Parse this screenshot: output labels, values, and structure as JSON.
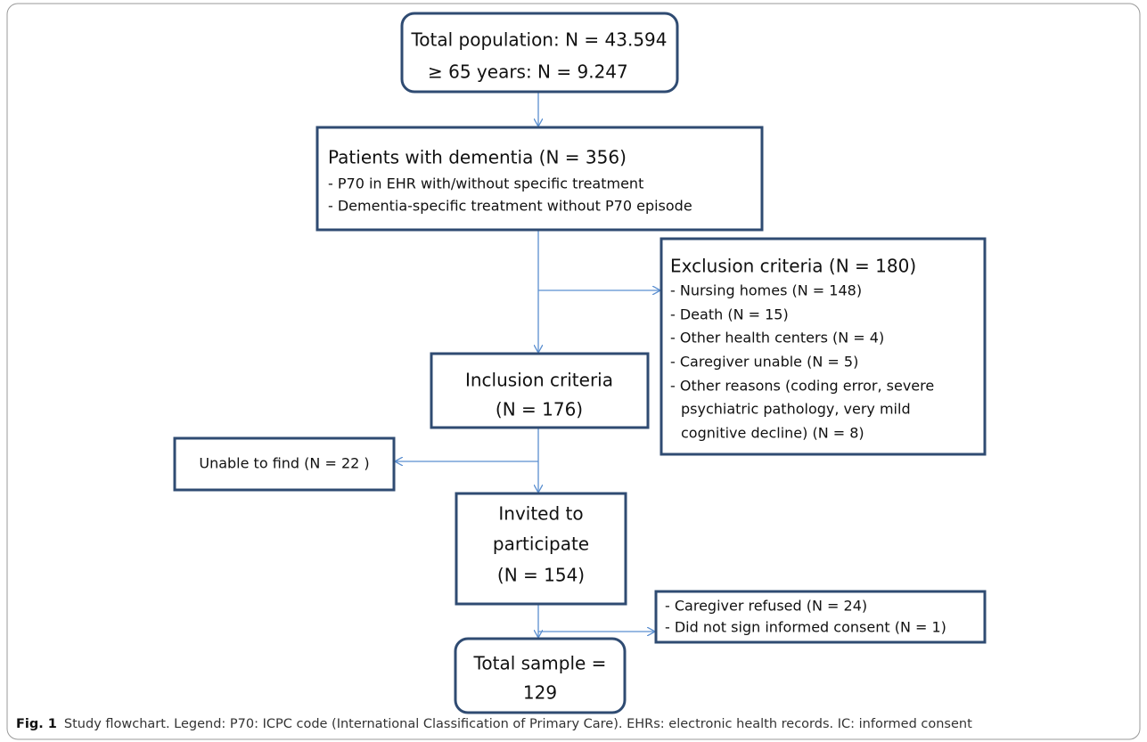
{
  "nodes": [
    {
      "lines": [
        "Total population: N = 43.594",
        "≥ 65 years: N = 9.247"
      ]
    },
    {
      "lines": [
        "Patients with dementia (N = 356)",
        "- P70 in EHR with/without specific treatment",
        "- Dementia-specific treatment without P70 episode"
      ]
    },
    {
      "lines": [
        "Exclusion criteria (N = 180)",
        "- Nursing homes (N = 148)",
        "- Death (N = 15)",
        "- Other health centers (N = 4)",
        "- Caregiver unable (N = 5)",
        "- Other reasons (coding error, severe",
        "psychiatric pathology, very mild",
        "cognitive decline) (N = 8)"
      ]
    },
    {
      "lines": [
        "Inclusion criteria",
        "(N = 176)"
      ]
    },
    {
      "lines": [
        "Unable to find (N = 22 )"
      ]
    },
    {
      "lines": [
        "Invited to",
        "participate",
        "(N = 154)"
      ]
    },
    {
      "lines": [
        "- Caregiver refused (N = 24)",
        "- Did not sign informed consent (N = 1)"
      ]
    },
    {
      "lines": [
        "Total sample =",
        "129"
      ]
    }
  ],
  "caption": {
    "label": "Fig. 1",
    "text": "Study flowchart. Legend: P70: ICPC code (International Classification of Primary Care). EHRs: electronic health records. IC: informed consent"
  }
}
